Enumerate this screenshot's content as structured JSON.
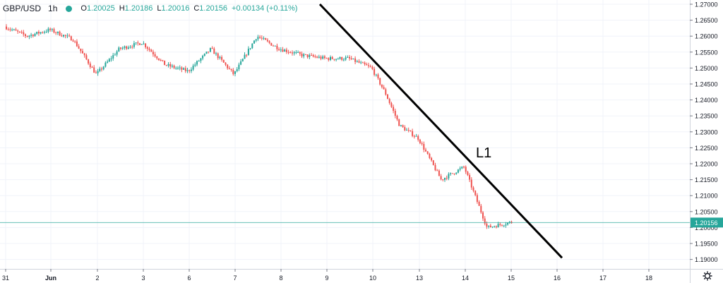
{
  "legend": {
    "symbol": "GBP/USD",
    "timeframe": "1h",
    "open_label": "O",
    "open": "1.20025",
    "high_label": "H",
    "high": "1.20186",
    "low_label": "L",
    "low": "1.20016",
    "close_label": "C",
    "close": "1.20156",
    "change": "+0.00134 (+0.11%)"
  },
  "chart_data": {
    "type": "candlestick",
    "symbol": "GBP/USD",
    "interval": "1h",
    "y_range": [
      1.1875,
      1.2705
    ],
    "y_ticks": [
      "1.19000",
      "1.19500",
      "1.20000",
      "1.20500",
      "1.21000",
      "1.21500",
      "1.22000",
      "1.22500",
      "1.23000",
      "1.23500",
      "1.24000",
      "1.24500",
      "1.25000",
      "1.25500",
      "1.26000",
      "1.26500",
      "1.27000"
    ],
    "x_ticks": [
      "31",
      "Jun",
      "2",
      "3",
      "6",
      "7",
      "8",
      "9",
      "10",
      "13",
      "14",
      "15",
      "16",
      "17",
      "18"
    ],
    "last_price": "1.20156",
    "price_path": [
      {
        "t": "31",
        "v": 1.263
      },
      {
        "t": "31.5",
        "v": 1.26
      },
      {
        "t": "Jun",
        "v": 1.262
      },
      {
        "t": "Jun.5",
        "v": 1.259
      },
      {
        "t": "2",
        "v": 1.248
      },
      {
        "t": "2.5",
        "v": 1.256
      },
      {
        "t": "3",
        "v": 1.258
      },
      {
        "t": "3.5",
        "v": 1.251
      },
      {
        "t": "6",
        "v": 1.249
      },
      {
        "t": "6.5",
        "v": 1.256
      },
      {
        "t": "7",
        "v": 1.248
      },
      {
        "t": "7.5",
        "v": 1.26
      },
      {
        "t": "8",
        "v": 1.256
      },
      {
        "t": "8.5",
        "v": 1.254
      },
      {
        "t": "9",
        "v": 1.253
      },
      {
        "t": "9.5",
        "v": 1.253
      },
      {
        "t": "10",
        "v": 1.25
      },
      {
        "t": "10.3",
        "v": 1.242
      },
      {
        "t": "10.6",
        "v": 1.232
      },
      {
        "t": "13",
        "v": 1.228
      },
      {
        "t": "13.5",
        "v": 1.215
      },
      {
        "t": "14",
        "v": 1.219
      },
      {
        "t": "14.5",
        "v": 1.2
      },
      {
        "t": "15",
        "v": 1.2016
      }
    ],
    "trendline": {
      "label": "L1",
      "from": {
        "t": "9",
        "v": 1.27
      },
      "to": {
        "t": "16",
        "v": 1.1905
      }
    },
    "grid": true
  },
  "colors": {
    "up": "#26a69a",
    "down": "#ef5350",
    "grid": "#f0f3fa",
    "axis_text": "#131722",
    "price_line": "#26a69a",
    "trendline": "#000000"
  }
}
